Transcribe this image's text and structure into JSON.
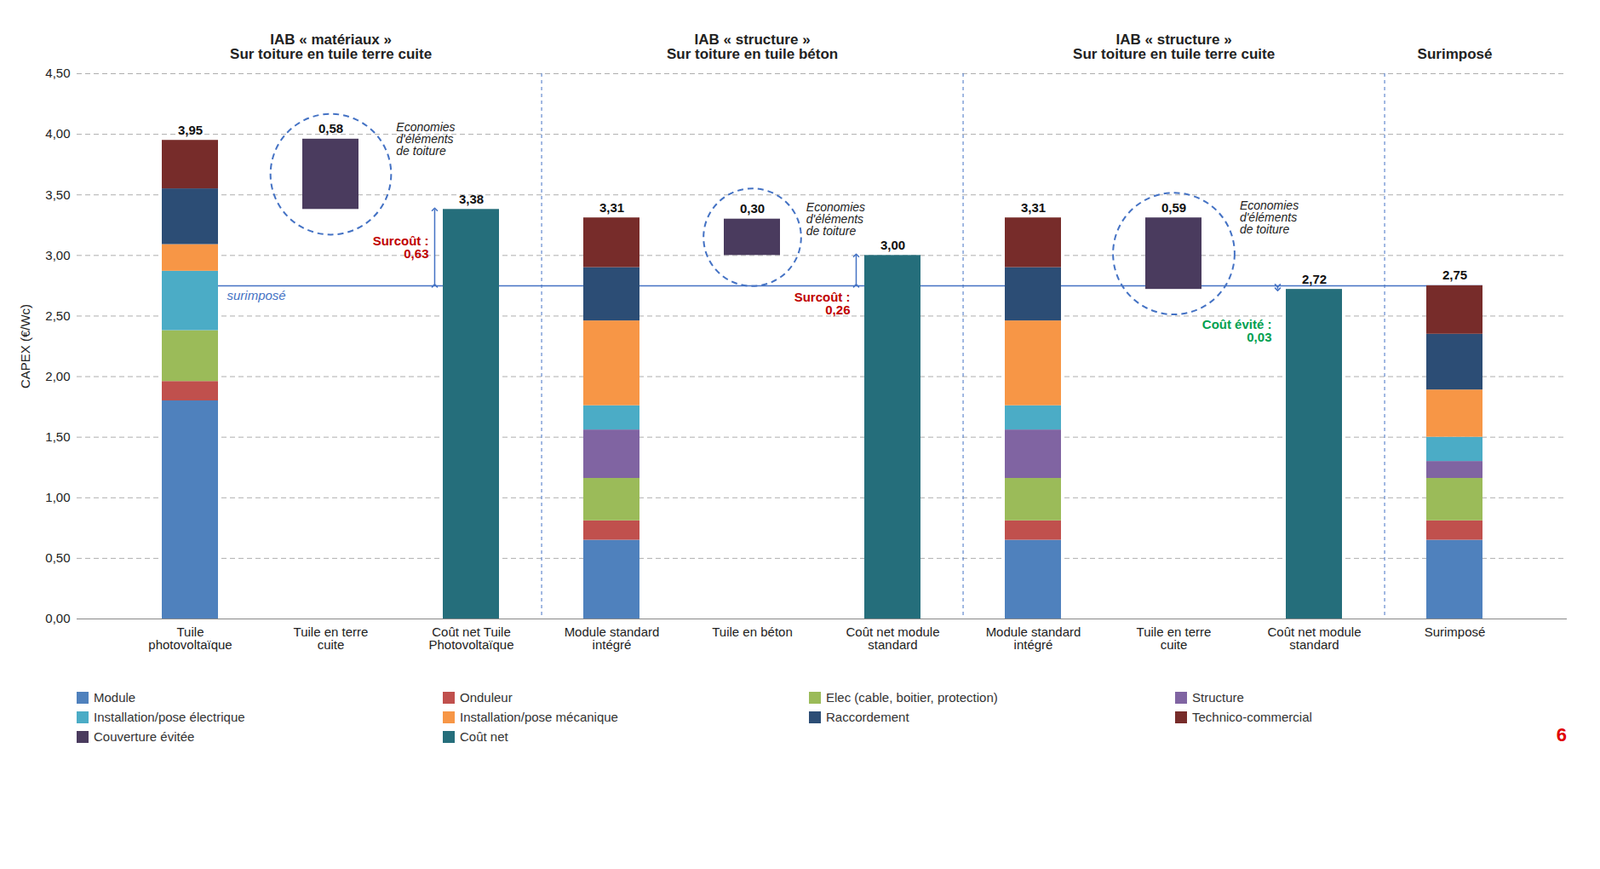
{
  "chart_data": {
    "type": "bar",
    "stacked": true,
    "grid": true,
    "data_labels": true,
    "legend": "bottom",
    "y_label": "CAPEX (€/Wc)",
    "ylim": [
      0,
      4.5
    ],
    "yticks": [
      {
        "value": 0,
        "label": "0,00"
      },
      {
        "value": 0.5,
        "label": "0,50"
      },
      {
        "value": 1,
        "label": "1,00"
      },
      {
        "value": 1.5,
        "label": "1,50"
      },
      {
        "value": 2,
        "label": "2,00"
      },
      {
        "value": 2.5,
        "label": "2,50"
      },
      {
        "value": 3,
        "label": "3,00"
      },
      {
        "value": 3.5,
        "label": "3,50"
      },
      {
        "value": 4,
        "label": "4,00"
      },
      {
        "value": 4.5,
        "label": "4,50"
      }
    ],
    "categories": [
      "Tuile photovoltaïque",
      "Tuile en terre cuite",
      "Coût net Tuile Photovoltaïque",
      "Module standard intégré",
      "Tuile en béton",
      "Coût net module standard",
      "Module standard intégré",
      "Tuile en terre cuite",
      "Coût net module standard",
      "Surimposé"
    ],
    "panels": [
      {
        "title": "IAB « matériaux »\nSur toiture en tuile terre cuite",
        "from": 0,
        "to": 2
      },
      {
        "title": "IAB « structure »\nSur toiture en tuile béton",
        "from": 3,
        "to": 5
      },
      {
        "title": "IAB « structure »\nSur toiture en tuile terre cuite",
        "from": 6,
        "to": 8
      },
      {
        "title": "Surimposé",
        "from": 9,
        "to": 9
      }
    ],
    "series": [
      {
        "name": "Module",
        "color": "#4f81bd",
        "values": [
          1.8,
          null,
          null,
          0.65,
          null,
          null,
          0.65,
          null,
          null,
          0.65
        ]
      },
      {
        "name": "Onduleur",
        "color": "#c0504d",
        "values": [
          0.16,
          null,
          null,
          0.16,
          null,
          null,
          0.16,
          null,
          null,
          0.16
        ]
      },
      {
        "name": "Elec (cable, boitier, protection)",
        "color": "#9bbb59",
        "values": [
          0.42,
          null,
          null,
          0.35,
          null,
          null,
          0.35,
          null,
          null,
          0.35
        ]
      },
      {
        "name": "Structure",
        "color": "#8064a2",
        "values": [
          null,
          null,
          null,
          0.4,
          null,
          null,
          0.4,
          null,
          null,
          0.14
        ]
      },
      {
        "name": "Installation/pose électrique",
        "color": "#4bacc6",
        "values": [
          0.49,
          null,
          null,
          0.2,
          null,
          null,
          0.2,
          null,
          null,
          0.2
        ]
      },
      {
        "name": "Installation/pose mécanique",
        "color": "#f79646",
        "values": [
          0.22,
          null,
          null,
          0.7,
          null,
          null,
          0.7,
          null,
          null,
          0.39
        ]
      },
      {
        "name": "Raccordement",
        "color": "#2c4d75",
        "values": [
          0.46,
          null,
          null,
          0.44,
          null,
          null,
          0.44,
          null,
          null,
          0.46
        ]
      },
      {
        "name": "Technico-commercial",
        "color": "#772c2a",
        "values": [
          0.4,
          null,
          null,
          0.41,
          null,
          null,
          0.41,
          null,
          null,
          0.4
        ]
      },
      {
        "name": "Couverture évitée",
        "color": "#4a3b5e",
        "values": [
          null,
          0.58,
          null,
          null,
          0.3,
          null,
          null,
          0.59,
          null,
          null
        ],
        "base": [
          null,
          3.38,
          null,
          null,
          3.0,
          null,
          null,
          2.72,
          null,
          null
        ]
      },
      {
        "name": "Coût net",
        "color": "#256e7b",
        "values": [
          null,
          null,
          3.38,
          null,
          null,
          3.0,
          null,
          null,
          2.72,
          null
        ]
      }
    ],
    "totals": [
      3.95,
      0.58,
      3.38,
      3.31,
      0.3,
      3.0,
      3.31,
      0.59,
      2.72,
      2.75
    ],
    "total_labels": [
      "3,95",
      "0,58",
      "3,38",
      "3,31",
      "0,30",
      "3,00",
      "3,31",
      "0,59",
      "2,72",
      "2,75"
    ],
    "reference": {
      "value": 2.75,
      "label": "surimposé",
      "color": "#4472c4"
    },
    "notes": [
      {
        "text": "Economies\nd'éléments\nde toiture",
        "at": 1
      },
      {
        "text": "Economies\nd'éléments\nde toiture",
        "at": 4
      },
      {
        "text": "Economies\nd'éléments\nde toiture",
        "at": 7
      }
    ],
    "differences": [
      {
        "text": "Surcoût :\n0,63",
        "at": 2,
        "color": "#c00000"
      },
      {
        "text": "Surcoût :\n0,26",
        "at": 5,
        "color": "#c00000"
      },
      {
        "text": "Coût évité :\n0,03",
        "at": 8,
        "color": "#00a050"
      }
    ],
    "page_number": "6"
  }
}
